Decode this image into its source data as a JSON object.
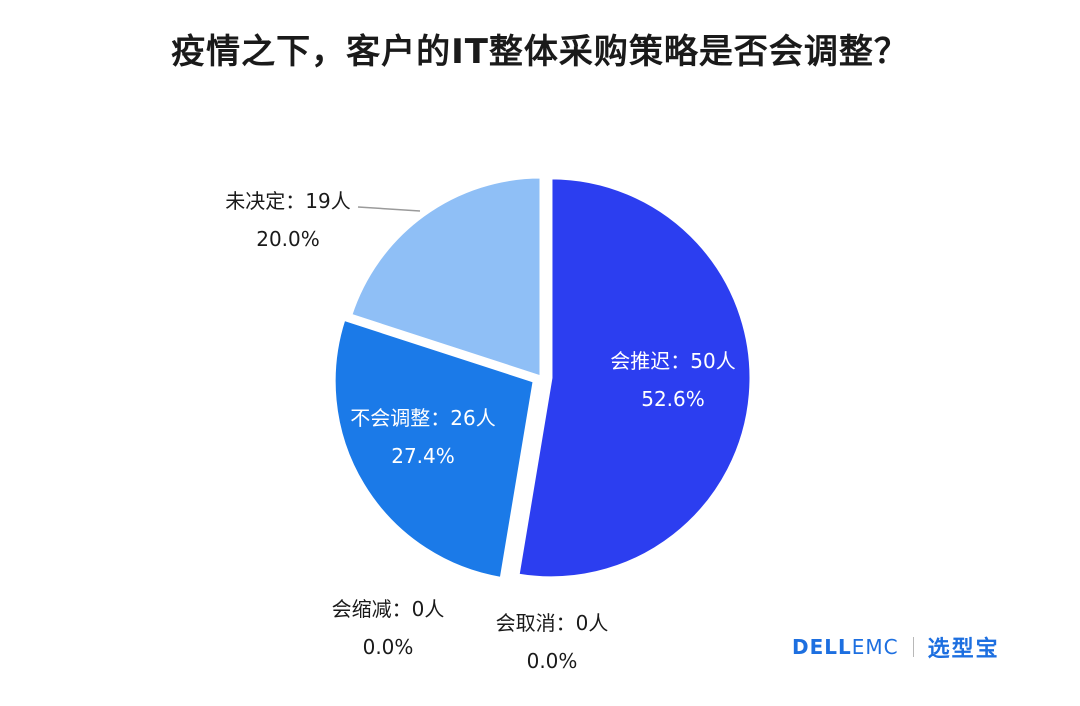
{
  "title": "疫情之下，客户的IT整体采购策略是否会调整？",
  "chart_data": {
    "type": "pie",
    "title": "疫情之下，客户的IT整体采购策略是否会调整？",
    "slices": [
      {
        "name": "会推迟",
        "count_label": "50人",
        "count": 50,
        "percent_label": "52.6%",
        "percent": 52.6,
        "color": "#2c3ef0"
      },
      {
        "name": "会取消",
        "count_label": "0人",
        "count": 0,
        "percent_label": "0.0%",
        "percent": 0.0,
        "color": "#1f5fe8"
      },
      {
        "name": "会缩减",
        "count_label": "0人",
        "count": 0,
        "percent_label": "0.0%",
        "percent": 0.0,
        "color": "#1a6fe6"
      },
      {
        "name": "不会调整",
        "count_label": "26人",
        "count": 26,
        "percent_label": "27.4%",
        "percent": 27.4,
        "color": "#1b7ae8"
      },
      {
        "name": "未决定",
        "count_label": "19人",
        "count": 19,
        "percent_label": "20.0%",
        "percent": 20.0,
        "color": "#8fbff6"
      }
    ],
    "legend": "none"
  },
  "labels": {
    "tuichi": {
      "text": "会推迟：50人",
      "pct": "52.6%"
    },
    "buhui": {
      "text": "不会调整：26人",
      "pct": "27.4%"
    },
    "weijueding": {
      "text": "未决定：19人",
      "pct": "20.0%"
    },
    "suojian": {
      "text": "会缩减：0人",
      "pct": "0.0%"
    },
    "quxiao": {
      "text": "会取消：0人",
      "pct": "0.0%"
    }
  },
  "brand": {
    "dell": "DELL",
    "emc": "EMC",
    "xuanxingbao": "选型宝"
  }
}
